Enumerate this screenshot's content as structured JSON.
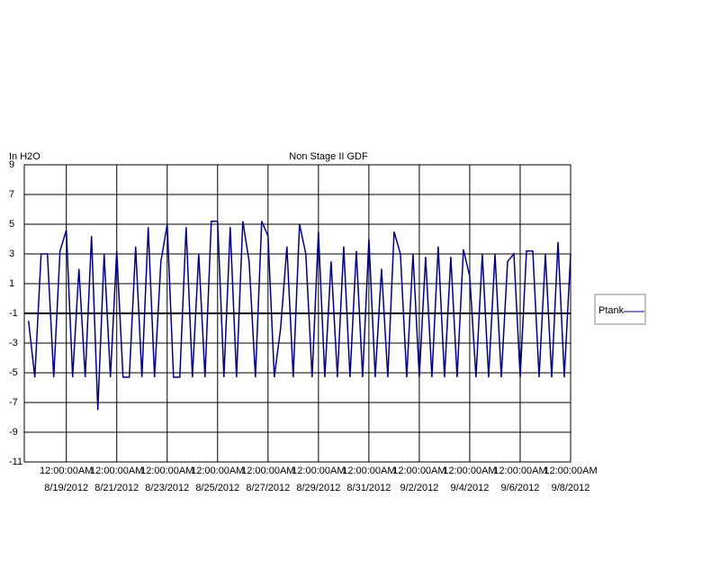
{
  "chart_data": {
    "type": "line",
    "title": "Non Stage II GDF",
    "y_label": "In H2O",
    "x": [
      "2012-08-17T12:00",
      "2012-08-17T18:00",
      "2012-08-18T00:00",
      "2012-08-18T06:00",
      "2012-08-18T12:00",
      "2012-08-18T18:00",
      "2012-08-19T00:00",
      "2012-08-19T06:00",
      "2012-08-19T12:00",
      "2012-08-19T18:00",
      "2012-08-20T00:00",
      "2012-08-20T06:00",
      "2012-08-20T12:00",
      "2012-08-20T18:00",
      "2012-08-21T00:00",
      "2012-08-21T06:00",
      "2012-08-21T12:00",
      "2012-08-21T18:00",
      "2012-08-22T00:00",
      "2012-08-22T06:00",
      "2012-08-22T12:00",
      "2012-08-22T18:00",
      "2012-08-23T00:00",
      "2012-08-23T06:00",
      "2012-08-23T12:00",
      "2012-08-23T18:00",
      "2012-08-24T00:00",
      "2012-08-24T06:00",
      "2012-08-24T12:00",
      "2012-08-24T18:00",
      "2012-08-25T00:00",
      "2012-08-25T06:00",
      "2012-08-25T12:00",
      "2012-08-25T18:00",
      "2012-08-26T00:00",
      "2012-08-26T06:00",
      "2012-08-26T12:00",
      "2012-08-26T18:00",
      "2012-08-27T00:00",
      "2012-08-27T06:00",
      "2012-08-27T12:00",
      "2012-08-27T18:00",
      "2012-08-28T00:00",
      "2012-08-28T06:00",
      "2012-08-28T12:00",
      "2012-08-28T18:00",
      "2012-08-29T00:00",
      "2012-08-29T06:00",
      "2012-08-29T12:00",
      "2012-08-29T18:00",
      "2012-08-30T00:00",
      "2012-08-30T06:00",
      "2012-08-30T12:00",
      "2012-08-30T18:00",
      "2012-08-31T00:00",
      "2012-08-31T06:00",
      "2012-08-31T12:00",
      "2012-08-31T18:00",
      "2012-09-01T00:00",
      "2012-09-01T06:00",
      "2012-09-01T12:00",
      "2012-09-01T18:00",
      "2012-09-02T00:00",
      "2012-09-02T06:00",
      "2012-09-02T12:00",
      "2012-09-02T18:00",
      "2012-09-03T00:00",
      "2012-09-03T06:00",
      "2012-09-03T12:00",
      "2012-09-03T18:00",
      "2012-09-04T00:00",
      "2012-09-04T06:00",
      "2012-09-04T12:00",
      "2012-09-04T18:00",
      "2012-09-05T00:00",
      "2012-09-05T06:00",
      "2012-09-05T12:00",
      "2012-09-05T18:00",
      "2012-09-06T00:00",
      "2012-09-06T06:00",
      "2012-09-06T12:00",
      "2012-09-06T18:00",
      "2012-09-07T00:00",
      "2012-09-07T06:00",
      "2012-09-07T12:00",
      "2012-09-07T18:00",
      "2012-09-08T00:00"
    ],
    "series": [
      {
        "name": "Ptank",
        "color": "#000080",
        "values": [
          -1.5,
          -5.3,
          3,
          3,
          -5.3,
          3.2,
          4.6,
          -5.3,
          2,
          -5.3,
          4.2,
          -7.5,
          3,
          -5.3,
          3.2,
          -5.3,
          -5.3,
          3.5,
          -5.3,
          4.8,
          -5.3,
          2.5,
          5,
          -5.3,
          -5.3,
          4.8,
          -5.3,
          3,
          -5.3,
          5.2,
          5.2,
          -5.3,
          4.8,
          -5.3,
          5.2,
          2.5,
          -5.3,
          5.2,
          4.2,
          -5.3,
          -2,
          3.5,
          -5.3,
          5,
          3,
          -5.3,
          4.5,
          -5.3,
          2.5,
          -5.3,
          3.5,
          -5.3,
          3.2,
          -5.3,
          4,
          -5.3,
          2,
          -5.3,
          4.5,
          3,
          -5.3,
          3,
          -5.3,
          2.8,
          -5.3,
          3.5,
          -5.3,
          2.8,
          -5.3,
          3.3,
          1.5,
          -5.3,
          3,
          -5.3,
          3,
          -5.3,
          2.5,
          3,
          -5.3,
          3.2,
          3.2,
          -5.3,
          3,
          -5.3,
          3.8,
          -5.3,
          3
        ]
      }
    ],
    "xlim": [
      "2012-08-17T08:00",
      "2012-09-08T00:00"
    ],
    "xticks": [
      {
        "value": "2012-08-19T00:00",
        "label": [
          "12:00:00AM",
          "8/19/2012"
        ]
      },
      {
        "value": "2012-08-21T00:00",
        "label": [
          "12:00:00AM",
          "8/21/2012"
        ]
      },
      {
        "value": "2012-08-23T00:00",
        "label": [
          "12:00:00AM",
          "8/23/2012"
        ]
      },
      {
        "value": "2012-08-25T00:00",
        "label": [
          "12:00:00AM",
          "8/25/2012"
        ]
      },
      {
        "value": "2012-08-27T00:00",
        "label": [
          "12:00:00AM",
          "8/27/2012"
        ]
      },
      {
        "value": "2012-08-29T00:00",
        "label": [
          "12:00:00AM",
          "8/29/2012"
        ]
      },
      {
        "value": "2012-08-31T00:00",
        "label": [
          "12:00:00AM",
          "8/31/2012"
        ]
      },
      {
        "value": "2012-09-02T00:00",
        "label": [
          "12:00:00AM",
          "9/2/2012"
        ]
      },
      {
        "value": "2012-09-04T00:00",
        "label": [
          "12:00:00AM",
          "9/4/2012"
        ]
      },
      {
        "value": "2012-09-06T00:00",
        "label": [
          "12:00:00AM",
          "9/6/2012"
        ]
      },
      {
        "value": "2012-09-08T00:00",
        "label": [
          "12:00:00AM",
          "9/8/2012"
        ]
      }
    ],
    "ylim": [
      -11,
      9
    ],
    "yticks": [
      -11,
      -9,
      -7,
      -5,
      -3,
      -1,
      1,
      3,
      5,
      7,
      9
    ],
    "grid": true,
    "legend": "right"
  }
}
